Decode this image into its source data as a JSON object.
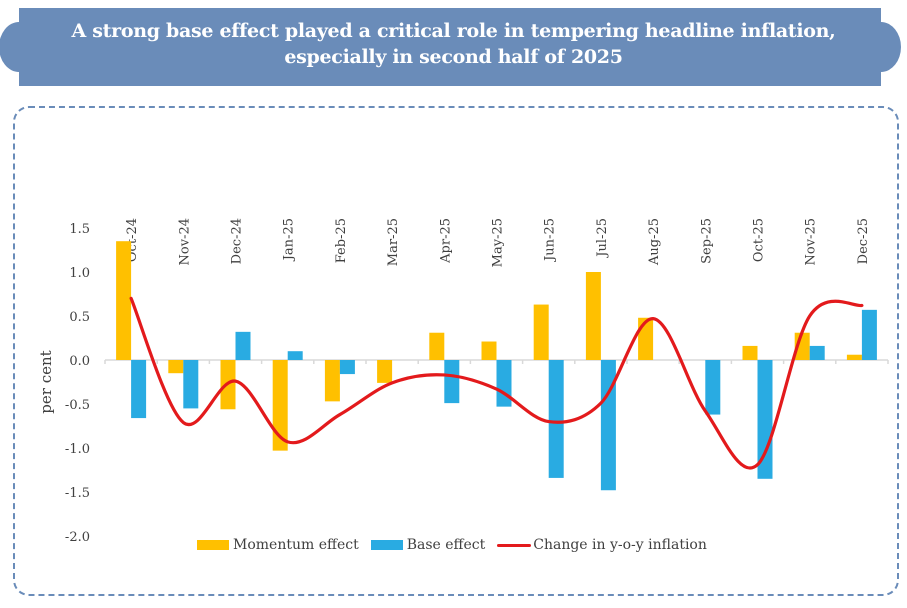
{
  "banner": {
    "title": "A strong base effect played a critical role in tempering headline inflation, especially in second half of 2025",
    "color": "#6a8cb9"
  },
  "chart_data": {
    "type": "bar",
    "title": "A strong base effect played a critical role in tempering headline inflation, especially in second half of 2025",
    "xlabel": "",
    "ylabel": "per cent",
    "ylim": [
      -2.0,
      1.5
    ],
    "yticks": [
      1.5,
      1.0,
      0.5,
      0.0,
      -0.5,
      -1.0,
      -1.5,
      -2.0
    ],
    "ytick_labels": [
      "1.5",
      "1.0",
      "0.5",
      "0.0",
      "-0.5",
      "-1.0",
      "-1.5",
      "-2.0"
    ],
    "grid": false,
    "legend_position": "bottom",
    "categories": [
      "Oct-24",
      "Nov-24",
      "Dec-24",
      "Jan-25",
      "Feb-25",
      "Mar-25",
      "Apr-25",
      "May-25",
      "Jun-25",
      "Jul-25",
      "Aug-25",
      "Sep-25",
      "Oct-25",
      "Nov-25",
      "Dec-25"
    ],
    "series": [
      {
        "name": "Momentum effect",
        "type": "bar",
        "color": "#ffc000",
        "values": [
          1.35,
          -0.15,
          -0.56,
          -1.03,
          -0.47,
          -0.26,
          0.31,
          0.21,
          0.63,
          1.0,
          0.48,
          0.0,
          0.16,
          0.31,
          0.06
        ]
      },
      {
        "name": "Base effect",
        "type": "bar",
        "color": "#29abe2",
        "values": [
          -0.66,
          -0.55,
          0.32,
          0.1,
          -0.16,
          0.0,
          -0.49,
          -0.53,
          -1.34,
          -1.48,
          0.0,
          -0.62,
          -1.35,
          0.16,
          0.57
        ]
      },
      {
        "name": "Change in y-o-y inflation",
        "type": "line",
        "smooth": true,
        "color": "#e31a1c",
        "values": [
          0.7,
          -0.71,
          -0.24,
          -0.93,
          -0.62,
          -0.26,
          -0.17,
          -0.33,
          -0.7,
          -0.49,
          0.47,
          -0.58,
          -1.19,
          0.5,
          0.62
        ]
      }
    ]
  }
}
